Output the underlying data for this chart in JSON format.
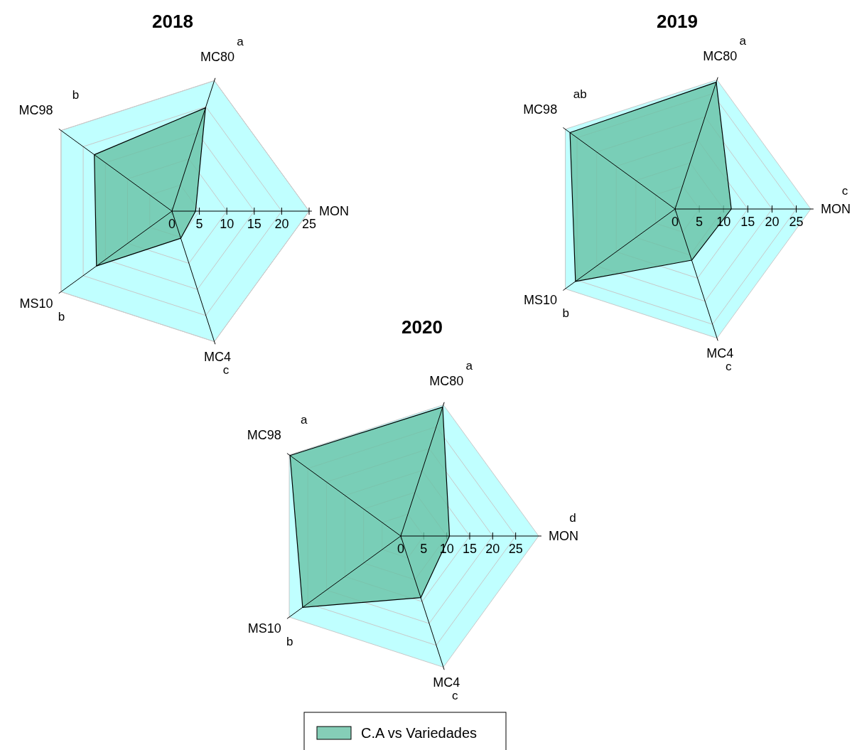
{
  "chart_data": [
    {
      "type": "radar",
      "title": "2018",
      "categories": [
        "MC80",
        "MON",
        "MC4",
        "MS10",
        "MC98"
      ],
      "series": [
        {
          "color": "#66c2a5",
          "values": [
            19.8,
            4.3,
            5.2,
            17.0,
            17.5
          ]
        }
      ],
      "ylim": [
        0,
        25
      ],
      "yticks": [
        0,
        5,
        10,
        15,
        20,
        25
      ],
      "grid": true,
      "legend": false,
      "annotations": [
        {
          "text": "a",
          "x": "MC80"
        },
        {
          "text": "c",
          "x": "MC4"
        },
        {
          "text": "b",
          "x": "MS10"
        },
        {
          "text": "b",
          "x": "MC98"
        }
      ]
    },
    {
      "type": "radar",
      "title": "2019",
      "categories": [
        "MC80",
        "MON",
        "MC4",
        "MS10",
        "MC98"
      ],
      "series": [
        {
          "color": "#66c2a5",
          "values": [
            27.5,
            11.6,
            11.1,
            25.4,
            26.8
          ]
        }
      ],
      "ylim": [
        0,
        28
      ],
      "yticks": [
        0,
        5,
        10,
        15,
        20,
        25
      ],
      "grid": true,
      "legend": false,
      "annotations": [
        {
          "text": "a",
          "x": "MC80"
        },
        {
          "text": "c",
          "x": "MON"
        },
        {
          "text": "c",
          "x": "MC4"
        },
        {
          "text": "b",
          "x": "MS10"
        },
        {
          "text": "ab",
          "x": "MC98"
        }
      ]
    },
    {
      "type": "radar",
      "title": "2020",
      "categories": [
        "MC80",
        "MON",
        "MC4",
        "MS10",
        "MC98"
      ],
      "series": [
        {
          "name": "C.A vs Variedades",
          "color": "#66c2a5",
          "values": [
            29.5,
            10.6,
            14.1,
            26.4,
            29.8
          ]
        }
      ],
      "ylim": [
        0,
        30
      ],
      "yticks": [
        0,
        5,
        10,
        15,
        20,
        25
      ],
      "grid": true,
      "legend": "bottom",
      "annotations": [
        {
          "text": "a",
          "x": "MC80"
        },
        {
          "text": "d",
          "x": "MON"
        },
        {
          "text": "c",
          "x": "MC4"
        },
        {
          "text": "b",
          "x": "MS10"
        },
        {
          "text": "a",
          "x": "MC98"
        }
      ]
    }
  ]
}
